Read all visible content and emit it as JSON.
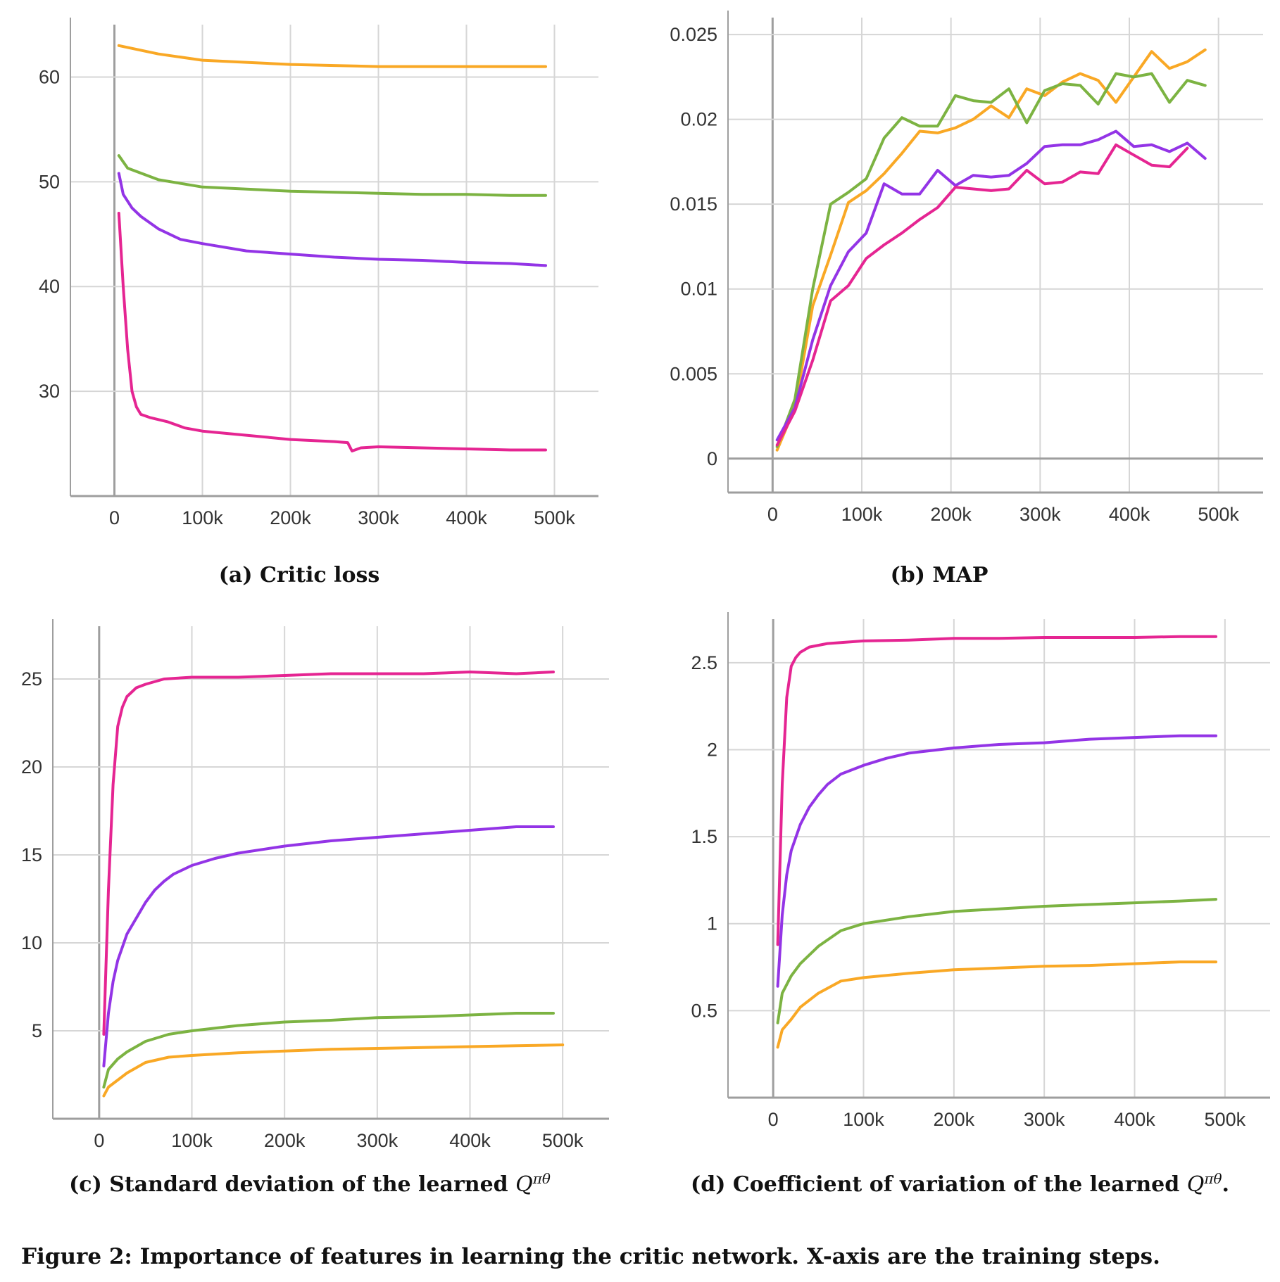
{
  "chart_data": [
    {
      "type": "line",
      "caption_label": "(a) Critic loss",
      "xlim": [
        -50000,
        550000
      ],
      "ylim": [
        20,
        65
      ],
      "xticks": [
        0,
        100000,
        200000,
        300000,
        400000,
        500000
      ],
      "xtick_labels": [
        "0",
        "100k",
        "200k",
        "300k",
        "400k",
        "500k"
      ],
      "yticks": [
        30,
        40,
        50,
        60
      ],
      "ytick_labels": [
        "30",
        "40",
        "50",
        "60"
      ],
      "grid": true,
      "series": [
        {
          "color": "#F9A825",
          "x": [
            5000,
            50000,
            100000,
            150000,
            200000,
            250000,
            300000,
            350000,
            400000,
            450000,
            490000
          ],
          "y": [
            63.0,
            62.2,
            61.6,
            61.4,
            61.2,
            61.1,
            61.0,
            61.0,
            61.0,
            61.0,
            61.0
          ]
        },
        {
          "color": "#7CB342",
          "x": [
            5000,
            15000,
            50000,
            100000,
            150000,
            200000,
            250000,
            300000,
            350000,
            400000,
            450000,
            490000
          ],
          "y": [
            52.5,
            51.3,
            50.2,
            49.5,
            49.3,
            49.1,
            49.0,
            48.9,
            48.8,
            48.8,
            48.7,
            48.7
          ]
        },
        {
          "color": "#9334E6",
          "x": [
            5000,
            10000,
            20000,
            30000,
            50000,
            75000,
            100000,
            150000,
            200000,
            250000,
            300000,
            350000,
            400000,
            450000,
            490000
          ],
          "y": [
            50.8,
            48.8,
            47.5,
            46.7,
            45.5,
            44.5,
            44.1,
            43.4,
            43.1,
            42.8,
            42.6,
            42.5,
            42.3,
            42.2,
            42.0
          ]
        },
        {
          "color": "#E52592",
          "x": [
            5000,
            10000,
            15000,
            20000,
            25000,
            30000,
            40000,
            60000,
            80000,
            100000,
            150000,
            200000,
            250000,
            265000,
            270000,
            280000,
            300000,
            350000,
            400000,
            450000,
            490000
          ],
          "y": [
            47.0,
            40.0,
            34.0,
            30.0,
            28.5,
            27.8,
            27.5,
            27.1,
            26.5,
            26.2,
            25.8,
            25.4,
            25.2,
            25.1,
            24.3,
            24.6,
            24.7,
            24.6,
            24.5,
            24.4,
            24.4
          ]
        }
      ]
    },
    {
      "type": "line",
      "caption_label": "(b) MAP",
      "xlim": [
        -50000,
        550000
      ],
      "ylim": [
        -0.002,
        0.026
      ],
      "xticks": [
        0,
        100000,
        200000,
        300000,
        400000,
        500000
      ],
      "xtick_labels": [
        "0",
        "100k",
        "200k",
        "300k",
        "400k",
        "500k"
      ],
      "yticks": [
        0,
        0.005,
        0.01,
        0.015,
        0.02,
        0.025
      ],
      "ytick_labels": [
        "0",
        "0.005",
        "0.01",
        "0.015",
        "0.02",
        "0.025"
      ],
      "grid": true,
      "series": [
        {
          "color": "#F9A825",
          "x": [
            5000,
            25000,
            45000,
            65000,
            85000,
            105000,
            125000,
            145000,
            165000,
            185000,
            205000,
            225000,
            245000,
            265000,
            285000,
            305000,
            325000,
            345000,
            365000,
            385000,
            405000,
            425000,
            445000,
            465000,
            485000
          ],
          "y": [
            0.0005,
            0.003,
            0.009,
            0.012,
            0.0151,
            0.0158,
            0.0168,
            0.018,
            0.0193,
            0.0192,
            0.0195,
            0.02,
            0.0208,
            0.0201,
            0.0218,
            0.0214,
            0.0222,
            0.0227,
            0.0223,
            0.021,
            0.0225,
            0.024,
            0.023,
            0.0234,
            0.0241
          ]
        },
        {
          "color": "#7CB342",
          "x": [
            5000,
            25000,
            45000,
            65000,
            85000,
            105000,
            125000,
            145000,
            165000,
            185000,
            205000,
            225000,
            245000,
            265000,
            285000,
            305000,
            325000,
            345000,
            365000,
            385000,
            405000,
            425000,
            445000,
            465000,
            485000
          ],
          "y": [
            0.0007,
            0.0035,
            0.01,
            0.015,
            0.0157,
            0.0165,
            0.0189,
            0.0201,
            0.0196,
            0.0196,
            0.0214,
            0.0211,
            0.021,
            0.0218,
            0.0198,
            0.0217,
            0.0221,
            0.022,
            0.0209,
            0.0227,
            0.0225,
            0.0227,
            0.021,
            0.0223,
            0.022
          ]
        },
        {
          "color": "#9334E6",
          "x": [
            5000,
            25000,
            45000,
            65000,
            85000,
            105000,
            125000,
            145000,
            165000,
            185000,
            205000,
            225000,
            245000,
            265000,
            285000,
            305000,
            325000,
            345000,
            365000,
            385000,
            405000,
            425000,
            445000,
            465000,
            485000
          ],
          "y": [
            0.0011,
            0.003,
            0.007,
            0.0102,
            0.0122,
            0.0133,
            0.0162,
            0.0156,
            0.0156,
            0.017,
            0.0161,
            0.0167,
            0.0166,
            0.0167,
            0.0174,
            0.0184,
            0.0185,
            0.0185,
            0.0188,
            0.0193,
            0.0184,
            0.0185,
            0.0181,
            0.0186,
            0.0177
          ]
        },
        {
          "color": "#E52592",
          "x": [
            5000,
            25000,
            45000,
            65000,
            85000,
            105000,
            125000,
            145000,
            165000,
            185000,
            205000,
            225000,
            245000,
            265000,
            285000,
            305000,
            325000,
            345000,
            365000,
            385000,
            405000,
            425000,
            445000,
            465000
          ],
          "y": [
            0.0008,
            0.0028,
            0.0058,
            0.0093,
            0.0102,
            0.0118,
            0.0126,
            0.0133,
            0.0141,
            0.0148,
            0.016,
            0.0159,
            0.0158,
            0.0159,
            0.017,
            0.0162,
            0.0163,
            0.0169,
            0.0168,
            0.0185,
            0.0179,
            0.0173,
            0.0172,
            0.0183
          ]
        }
      ]
    },
    {
      "type": "line",
      "caption_label": "(c) Standard deviation of the learned ",
      "caption_symbol": "Q",
      "caption_superscript": "πθ",
      "caption_suffix": "",
      "xlim": [
        -50000,
        550000
      ],
      "ylim": [
        0,
        28
      ],
      "xticks": [
        0,
        100000,
        200000,
        300000,
        400000,
        500000
      ],
      "xtick_labels": [
        "0",
        "100k",
        "200k",
        "300k",
        "400k",
        "500k"
      ],
      "yticks": [
        5,
        10,
        15,
        20,
        25
      ],
      "ytick_labels": [
        "5",
        "10",
        "15",
        "20",
        "25"
      ],
      "grid": true,
      "series": [
        {
          "color": "#E52592",
          "x": [
            5000,
            10000,
            15000,
            20000,
            25000,
            30000,
            40000,
            50000,
            70000,
            100000,
            150000,
            200000,
            250000,
            300000,
            350000,
            400000,
            450000,
            490000
          ],
          "y": [
            4.8,
            13.0,
            19.0,
            22.3,
            23.4,
            24.0,
            24.5,
            24.7,
            25.0,
            25.1,
            25.1,
            25.2,
            25.3,
            25.3,
            25.3,
            25.4,
            25.3,
            25.4
          ]
        },
        {
          "color": "#9334E6",
          "x": [
            5000,
            10000,
            15000,
            20000,
            30000,
            40000,
            50000,
            60000,
            70000,
            80000,
            100000,
            125000,
            150000,
            200000,
            250000,
            300000,
            350000,
            400000,
            450000,
            490000
          ],
          "y": [
            3.0,
            6.0,
            7.8,
            9.0,
            10.5,
            11.4,
            12.3,
            13.0,
            13.5,
            13.9,
            14.4,
            14.8,
            15.1,
            15.5,
            15.8,
            16.0,
            16.2,
            16.4,
            16.6,
            16.6
          ]
        },
        {
          "color": "#7CB342",
          "x": [
            5000,
            10000,
            20000,
            30000,
            50000,
            75000,
            100000,
            150000,
            200000,
            250000,
            300000,
            350000,
            400000,
            450000,
            490000
          ],
          "y": [
            1.8,
            2.8,
            3.4,
            3.8,
            4.4,
            4.8,
            5.0,
            5.3,
            5.5,
            5.6,
            5.75,
            5.8,
            5.9,
            6.0,
            6.0
          ]
        },
        {
          "color": "#F9A825",
          "x": [
            5000,
            10000,
            20000,
            30000,
            50000,
            75000,
            100000,
            150000,
            200000,
            250000,
            300000,
            350000,
            400000,
            450000,
            500000
          ],
          "y": [
            1.3,
            1.8,
            2.2,
            2.6,
            3.2,
            3.5,
            3.6,
            3.75,
            3.85,
            3.95,
            4.0,
            4.05,
            4.1,
            4.15,
            4.2
          ]
        }
      ]
    },
    {
      "type": "line",
      "caption_label": "(d) Coefficient of variation of the learned ",
      "caption_symbol": "Q",
      "caption_superscript": "πθ",
      "caption_suffix": ".",
      "xlim": [
        -50000,
        550000
      ],
      "ylim": [
        0,
        2.75
      ],
      "xticks": [
        0,
        100000,
        200000,
        300000,
        400000,
        500000
      ],
      "xtick_labels": [
        "0",
        "100k",
        "200k",
        "300k",
        "400k",
        "500k"
      ],
      "yticks": [
        0.5,
        1,
        1.5,
        2,
        2.5
      ],
      "ytick_labels": [
        "0.5",
        "1",
        "1.5",
        "2",
        "2.5"
      ],
      "grid": true,
      "series": [
        {
          "color": "#E52592",
          "x": [
            5000,
            10000,
            15000,
            20000,
            25000,
            30000,
            40000,
            60000,
            100000,
            150000,
            200000,
            250000,
            300000,
            350000,
            400000,
            450000,
            490000
          ],
          "y": [
            0.88,
            1.8,
            2.3,
            2.48,
            2.53,
            2.56,
            2.59,
            2.61,
            2.625,
            2.63,
            2.64,
            2.64,
            2.645,
            2.645,
            2.645,
            2.65,
            2.65
          ]
        },
        {
          "color": "#9334E6",
          "x": [
            5000,
            10000,
            15000,
            20000,
            30000,
            40000,
            50000,
            60000,
            75000,
            100000,
            125000,
            150000,
            200000,
            250000,
            300000,
            350000,
            400000,
            450000,
            490000
          ],
          "y": [
            0.64,
            1.05,
            1.28,
            1.42,
            1.57,
            1.67,
            1.74,
            1.8,
            1.86,
            1.91,
            1.95,
            1.98,
            2.01,
            2.03,
            2.04,
            2.06,
            2.07,
            2.08,
            2.08
          ]
        },
        {
          "color": "#7CB342",
          "x": [
            5000,
            10000,
            20000,
            30000,
            50000,
            75000,
            100000,
            150000,
            200000,
            250000,
            300000,
            350000,
            400000,
            450000,
            490000
          ],
          "y": [
            0.43,
            0.6,
            0.7,
            0.77,
            0.87,
            0.96,
            1.0,
            1.04,
            1.07,
            1.085,
            1.1,
            1.11,
            1.12,
            1.13,
            1.14
          ]
        },
        {
          "color": "#F9A825",
          "x": [
            5000,
            10000,
            20000,
            30000,
            50000,
            75000,
            100000,
            150000,
            200000,
            250000,
            300000,
            350000,
            400000,
            450000,
            490000
          ],
          "y": [
            0.29,
            0.39,
            0.45,
            0.52,
            0.6,
            0.67,
            0.69,
            0.715,
            0.735,
            0.745,
            0.755,
            0.76,
            0.77,
            0.78,
            0.78
          ]
        }
      ]
    }
  ],
  "figure_caption": "Figure 2: Importance of features in learning the critic network. X-axis are the training steps."
}
